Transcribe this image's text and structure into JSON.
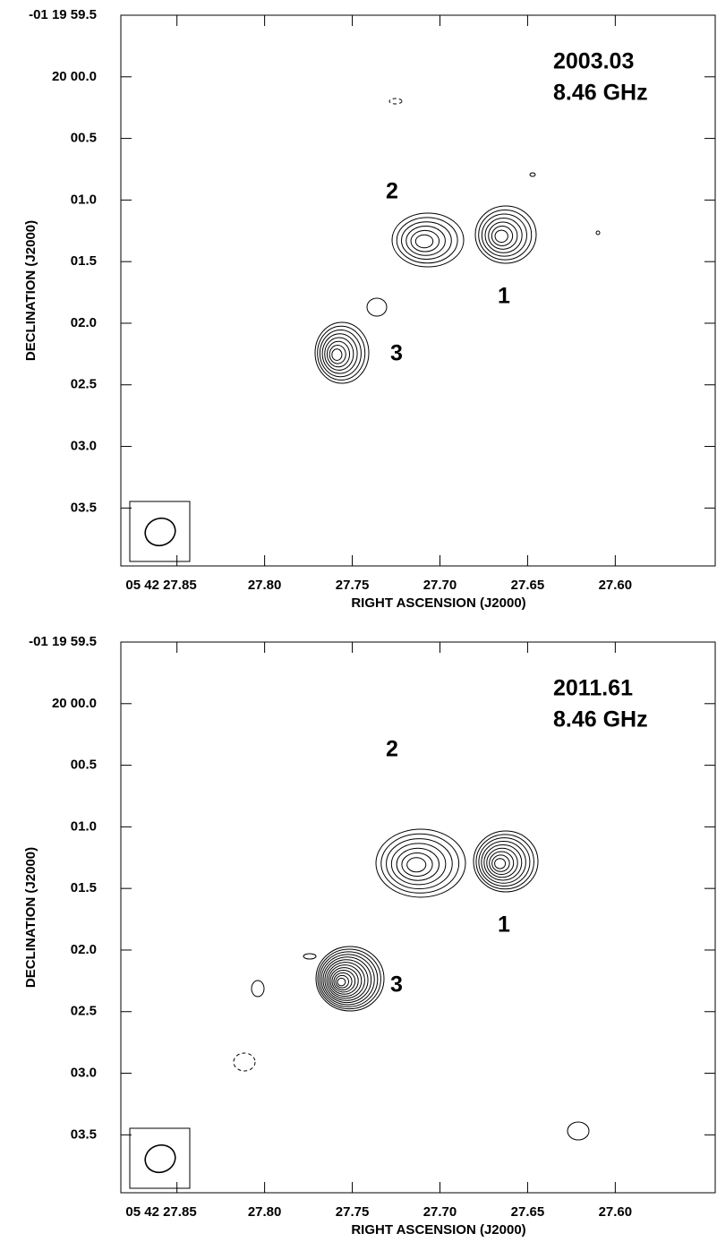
{
  "chart_data": [
    {
      "type": "contour",
      "epoch": "2003.03",
      "frequency": "8.46 GHz",
      "component_labels": [
        "1",
        "2",
        "3"
      ],
      "x_label": "RIGHT ASCENSION (J2000)",
      "y_label": "DECLINATION (J2000)",
      "xlim": [
        27.882,
        27.543
      ],
      "ylim": [
        -0.5,
        3.97
      ],
      "xticks": [
        {
          "value": 27.85,
          "label": "05 42 27.85"
        },
        {
          "value": 27.8,
          "label": "27.80"
        },
        27.75,
        {
          "value": 27.7,
          "label": "27.70"
        },
        27.65,
        {
          "value": 27.6,
          "label": "27.60"
        }
      ],
      "yticks": [
        {
          "value": -0.5,
          "label": "-01 19 59.5"
        },
        {
          "value": 0,
          "label": "20 00.0"
        },
        {
          "value": 0.5,
          "label": "00.5"
        },
        {
          "value": 1,
          "label": "01.0"
        },
        {
          "value": 1.5,
          "label": "01.5"
        },
        {
          "value": 2,
          "label": "02.0"
        },
        {
          "value": 2.5,
          "label": "02.5"
        },
        {
          "value": 3,
          "label": "03.0"
        },
        {
          "value": 3.5,
          "label": "03.5"
        }
      ]
    },
    {
      "type": "contour",
      "epoch": "2011.61",
      "frequency": "8.46 GHz",
      "component_labels": [
        "1",
        "2",
        "3"
      ],
      "x_label": "RIGHT ASCENSION (J2000)",
      "y_label": "DECLINATION (J2000)",
      "xlim": [
        27.882,
        27.543
      ],
      "ylim": [
        -0.5,
        3.97
      ],
      "xticks": [
        {
          "value": 27.85,
          "label": "05 42 27.85"
        },
        {
          "value": 27.8,
          "label": "27.80"
        },
        27.75,
        {
          "value": 27.7,
          "label": "27.70"
        },
        27.65,
        {
          "value": 27.6,
          "label": "27.60"
        }
      ],
      "yticks": [
        {
          "value": -0.5,
          "label": "-01 19 59.5"
        },
        {
          "value": 0,
          "label": "20 00.0"
        },
        {
          "value": 0.5,
          "label": "00.5"
        },
        {
          "value": 1,
          "label": "01.0"
        },
        {
          "value": 1.5,
          "label": "01.5"
        },
        {
          "value": 2,
          "label": "02.0"
        },
        {
          "value": 2.5,
          "label": "02.5"
        },
        {
          "value": 3,
          "label": "03.0"
        },
        {
          "value": 3.5,
          "label": "03.5"
        }
      ]
    }
  ]
}
